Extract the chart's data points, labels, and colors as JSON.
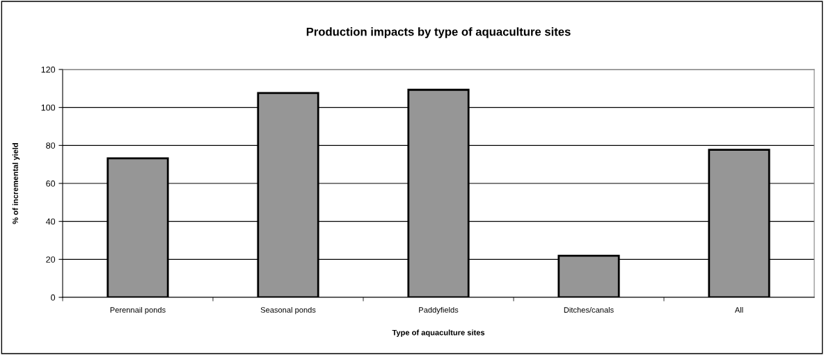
{
  "chart_data": {
    "type": "bar",
    "title": "Production impacts by type of aquaculture sites",
    "xlabel": "Type of aquaculture sites",
    "ylabel": "% of incremental yield",
    "categories": [
      "Perennail ponds",
      "Seasonal ponds",
      "Paddyfields",
      "Ditches/canals",
      "All"
    ],
    "values": [
      73.2,
      107.6,
      109.3,
      21.9,
      77.7
    ],
    "color": "#969696",
    "ylim": [
      0,
      120
    ],
    "yticks": [
      0,
      20,
      40,
      60,
      80,
      100,
      120
    ],
    "grid": "y",
    "legend": false
  }
}
